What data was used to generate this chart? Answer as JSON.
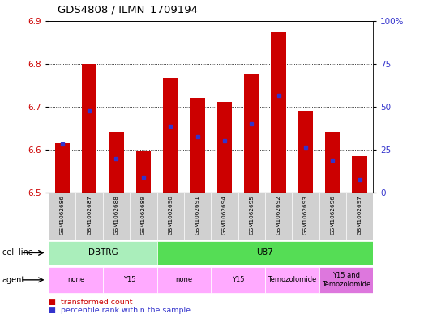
{
  "title": "GDS4808 / ILMN_1709194",
  "samples": [
    "GSM1062686",
    "GSM1062687",
    "GSM1062688",
    "GSM1062689",
    "GSM1062690",
    "GSM1062691",
    "GSM1062694",
    "GSM1062695",
    "GSM1062692",
    "GSM1062693",
    "GSM1062696",
    "GSM1062697"
  ],
  "bar_tops": [
    6.615,
    6.8,
    6.64,
    6.595,
    6.765,
    6.72,
    6.71,
    6.775,
    6.875,
    6.69,
    6.64,
    6.585
  ],
  "bar_bottom": 6.5,
  "percentile_values": [
    6.613,
    6.69,
    6.578,
    6.535,
    6.655,
    6.63,
    6.62,
    6.66,
    6.725,
    6.605,
    6.575,
    6.53
  ],
  "ylim_left": [
    6.5,
    6.9
  ],
  "ylim_right": [
    0,
    100
  ],
  "yticks_left": [
    6.5,
    6.6,
    6.7,
    6.8,
    6.9
  ],
  "yticks_right": [
    0,
    25,
    50,
    75,
    100
  ],
  "ytick_labels_right": [
    "0",
    "25",
    "50",
    "75",
    "100%"
  ],
  "bar_color": "#cc0000",
  "percentile_color": "#3333cc",
  "bar_width": 0.55,
  "cell_line_groups": [
    {
      "label": "DBTRG",
      "start": 0,
      "end": 3,
      "color": "#aaeebb"
    },
    {
      "label": "U87",
      "start": 4,
      "end": 11,
      "color": "#55dd55"
    }
  ],
  "agent_groups": [
    {
      "label": "none",
      "start": 0,
      "end": 1,
      "color": "#ffaaff"
    },
    {
      "label": "Y15",
      "start": 2,
      "end": 3,
      "color": "#ffaaff"
    },
    {
      "label": "none",
      "start": 4,
      "end": 5,
      "color": "#ffaaff"
    },
    {
      "label": "Y15",
      "start": 6,
      "end": 7,
      "color": "#ffaaff"
    },
    {
      "label": "Temozolomide",
      "start": 8,
      "end": 9,
      "color": "#ffaaff"
    },
    {
      "label": "Y15 and\nTemozolomide",
      "start": 10,
      "end": 11,
      "color": "#dd77dd"
    }
  ],
  "legend_red_label": "transformed count",
  "legend_blue_label": "percentile rank within the sample",
  "legend_red_color": "#cc0000",
  "legend_blue_color": "#3333cc",
  "background_color": "#ffffff",
  "tick_color_left": "#cc0000",
  "tick_color_right": "#3333cc",
  "label_area_color": "#cccccc",
  "grid_dotted_values": [
    6.6,
    6.7,
    6.8
  ]
}
